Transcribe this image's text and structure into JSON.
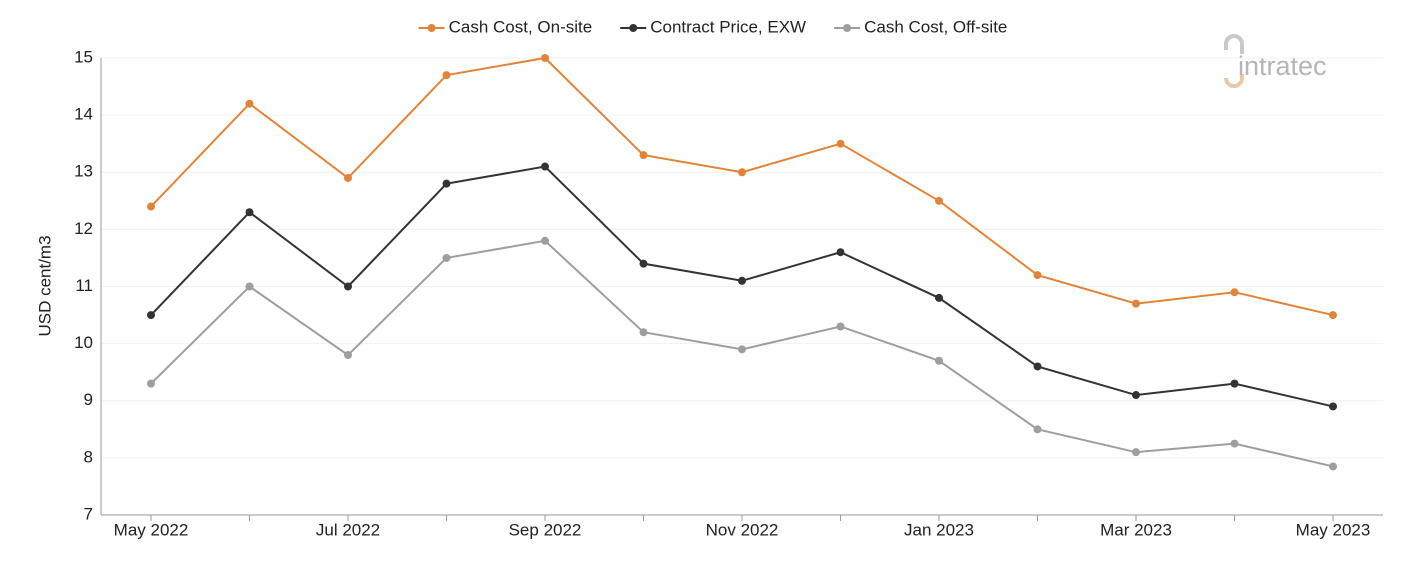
{
  "chart_data": {
    "type": "line",
    "y_label": "USD cent/m3",
    "logo": "intratec",
    "categories": [
      "May 2022",
      null,
      "Jul 2022",
      null,
      "Sep 2022",
      null,
      "Nov 2022",
      null,
      "Jan 2023",
      null,
      "Mar 2023",
      null,
      "May 2023"
    ],
    "series": [
      {
        "name": "Cash Cost, On-site",
        "color": "#e0843a",
        "values": [
          12.4,
          14.2,
          12.9,
          14.7,
          15.0,
          13.3,
          13.0,
          13.5,
          12.5,
          11.2,
          10.7,
          10.9,
          10.5
        ]
      },
      {
        "name": "Contract Price, EXW",
        "color": "#333333",
        "values": [
          10.5,
          12.3,
          11.0,
          12.8,
          13.1,
          11.4,
          11.1,
          11.6,
          10.8,
          9.6,
          9.1,
          9.3,
          8.9
        ]
      },
      {
        "name": "Cash Cost, Off-site",
        "color": "#9e9e9e",
        "values": [
          9.3,
          11.0,
          9.8,
          11.5,
          11.8,
          10.2,
          9.9,
          10.3,
          9.7,
          8.5,
          8.1,
          8.25,
          7.85
        ]
      }
    ],
    "ylim": [
      7,
      15
    ],
    "yticks": [
      7,
      8,
      9,
      10,
      11,
      12,
      13,
      14,
      15
    ],
    "grid": true,
    "legend": "top"
  }
}
